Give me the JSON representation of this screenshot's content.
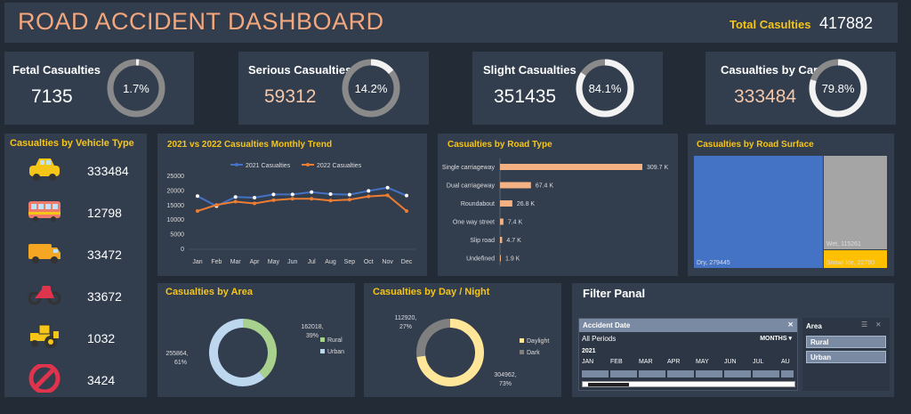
{
  "header": {
    "title": "ROAD ACCIDENT DASHBOARD",
    "total_label": "Total Casulties",
    "total_value": "417882"
  },
  "kpis": [
    {
      "label": "Fetal Casualties",
      "value": "7135",
      "pct_label": "1.7%",
      "pct": 1.7,
      "value_color": "#ffffff"
    },
    {
      "label": "Serious Casualties",
      "value": "59312",
      "pct_label": "14.2%",
      "pct": 14.2,
      "value_color": "#f4c7a8"
    },
    {
      "label": "Slight Casualties",
      "value": "351435",
      "pct_label": "84.1%",
      "pct": 84.1,
      "value_color": "#ffffff"
    },
    {
      "label": "Casualties by Car",
      "value": "333484",
      "pct_label": "79.8%",
      "pct": 79.8,
      "value_color": "#f4c7a8"
    }
  ],
  "vehicle": {
    "title": "Casualties by Vehicle Type",
    "rows": [
      {
        "icon": "car-icon",
        "value": "333484"
      },
      {
        "icon": "bus-icon",
        "value": "12798"
      },
      {
        "icon": "van-icon",
        "value": "33472"
      },
      {
        "icon": "motorbike-icon",
        "value": "33672"
      },
      {
        "icon": "tractor-icon",
        "value": "1032"
      },
      {
        "icon": "prohibited-icon",
        "value": "3424"
      }
    ]
  },
  "colors": {
    "blue": "#4472c4",
    "orange": "#ed7d31",
    "salmon": "#f4b183",
    "green": "#a9d18e",
    "lightblue": "#bdd7ee",
    "yellow": "#ffe699",
    "gray": "#7f7f7f",
    "gold": "#f5c518"
  },
  "chart_data": [
    {
      "type": "line",
      "title": "2021 vs 2022 Casualties Monthly Trend",
      "categories": [
        "Jan",
        "Feb",
        "Mar",
        "Apr",
        "May",
        "Jun",
        "Jul",
        "Aug",
        "Sep",
        "Oct",
        "Nov",
        "Dec"
      ],
      "series": [
        {
          "name": "2021 Casualties",
          "values": [
            18200,
            14800,
            17900,
            17700,
            18800,
            18800,
            19600,
            18900,
            18700,
            20000,
            21100,
            18400
          ]
        },
        {
          "name": "2022 Casualties",
          "values": [
            13100,
            15200,
            16300,
            15700,
            16800,
            17300,
            17300,
            16700,
            17000,
            18100,
            18500,
            13100
          ]
        }
      ],
      "yticks": [
        "25000",
        "20000",
        "15000",
        "10000",
        "5000",
        "0"
      ],
      "ylim": [
        0,
        25000
      ]
    },
    {
      "type": "bar",
      "title": "Casualties by Road Type",
      "categories": [
        "Single carriageway",
        "Dual carriageway",
        "Roundabout",
        "One way street",
        "Slip road",
        "Undefined"
      ],
      "values": [
        309.7,
        67.4,
        26.8,
        7.4,
        4.7,
        1.9
      ],
      "labels": [
        "309.7 K",
        "67.4 K",
        "26.8 K",
        "7.4 K",
        "4.7 K",
        "1.9 K"
      ]
    },
    {
      "type": "treemap",
      "title": "Casualties by Road Surface",
      "labels": [
        "Dry, 279445",
        "Wet, 115261",
        "Snow/ Ice, 22780"
      ],
      "values": [
        279445,
        115261,
        22780
      ]
    },
    {
      "type": "pie",
      "title": "Casualties by Area",
      "categories": [
        "Rural",
        "Urban"
      ],
      "values": [
        162018,
        255864
      ],
      "labels": [
        "162018,",
        "39%",
        "255864,",
        "61%"
      ]
    },
    {
      "type": "pie",
      "title": "Casualties by Day / Night",
      "categories": [
        "Daylight",
        "Dark"
      ],
      "values": [
        304962,
        112920
      ],
      "labels": [
        "112920,",
        "27%",
        "304962,",
        "73%"
      ]
    }
  ],
  "filter": {
    "title": "Filter Panal",
    "date_header": "Accident Date",
    "all_periods": "All Periods",
    "months": "MONTHS",
    "year": "2021",
    "month_labels": [
      "JAN",
      "FEB",
      "MAR",
      "APR",
      "MAY",
      "JUN",
      "JUL",
      "AU"
    ],
    "area_header": "Area",
    "area_items": [
      "Rural",
      "Urban"
    ]
  }
}
